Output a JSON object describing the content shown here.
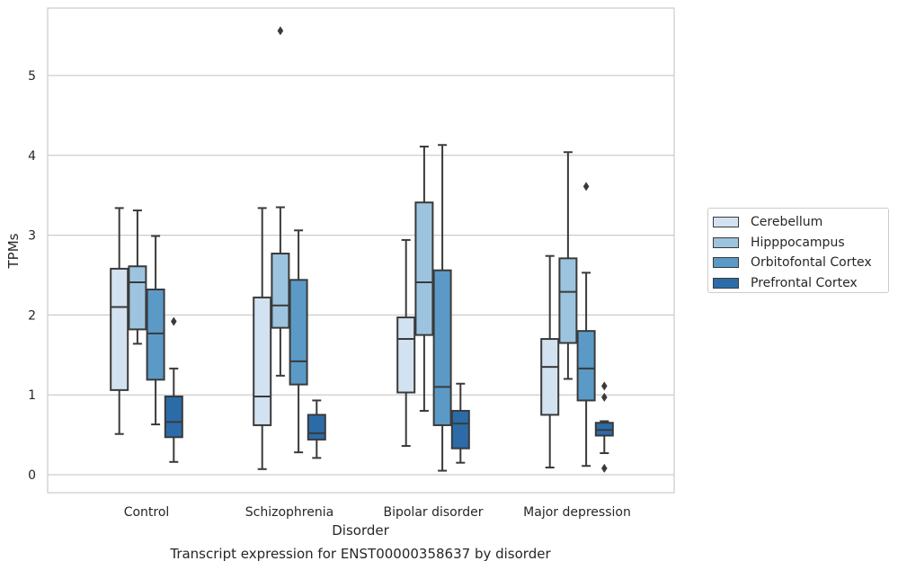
{
  "chart_data": {
    "type": "box",
    "title": "Transcript expression for ENST00000358637 by disorder",
    "xlabel": "Disorder",
    "ylabel": "TPMs",
    "ylim": [
      -0.22,
      5.85
    ],
    "yticks": [
      0,
      1,
      2,
      3,
      4,
      5
    ],
    "grid": "horizontal",
    "legend_position": "right",
    "categories": [
      "Control",
      "Schizophrenia",
      "Bipolar disorder",
      "Major depression"
    ],
    "series": [
      {
        "name": "Cerebellum",
        "color": "#d3e2f1",
        "boxes": [
          {
            "whislo": 0.51,
            "q1": 1.06,
            "med": 2.1,
            "q3": 2.58,
            "whishi": 3.34,
            "fliers": []
          },
          {
            "whislo": 0.07,
            "q1": 0.62,
            "med": 0.98,
            "q3": 2.22,
            "whishi": 3.34,
            "fliers": []
          },
          {
            "whislo": 0.36,
            "q1": 1.03,
            "med": 1.7,
            "q3": 1.97,
            "whishi": 2.94,
            "fliers": []
          },
          {
            "whislo": 0.09,
            "q1": 0.75,
            "med": 1.35,
            "q3": 1.7,
            "whishi": 2.74,
            "fliers": []
          }
        ]
      },
      {
        "name": "Hipppocampus",
        "color": "#9dc4de",
        "boxes": [
          {
            "whislo": 1.64,
            "q1": 1.82,
            "med": 2.41,
            "q3": 2.61,
            "whishi": 3.31,
            "fliers": []
          },
          {
            "whislo": 1.24,
            "q1": 1.84,
            "med": 2.12,
            "q3": 2.77,
            "whishi": 3.35,
            "fliers": [
              5.56
            ]
          },
          {
            "whislo": 0.8,
            "q1": 1.75,
            "med": 2.41,
            "q3": 3.41,
            "whishi": 4.11,
            "fliers": []
          },
          {
            "whislo": 1.2,
            "q1": 1.65,
            "med": 2.29,
            "q3": 2.71,
            "whishi": 4.04,
            "fliers": []
          }
        ]
      },
      {
        "name": "Orbitofontal Cortex",
        "color": "#5b9ac7",
        "boxes": [
          {
            "whislo": 0.63,
            "q1": 1.19,
            "med": 1.77,
            "q3": 2.32,
            "whishi": 2.99,
            "fliers": []
          },
          {
            "whislo": 0.28,
            "q1": 1.13,
            "med": 1.42,
            "q3": 2.44,
            "whishi": 3.06,
            "fliers": []
          },
          {
            "whislo": 0.05,
            "q1": 0.62,
            "med": 1.1,
            "q3": 2.56,
            "whishi": 4.13,
            "fliers": []
          },
          {
            "whislo": 0.11,
            "q1": 0.93,
            "med": 1.33,
            "q3": 1.8,
            "whishi": 2.53,
            "fliers": [
              3.61
            ]
          }
        ]
      },
      {
        "name": "Prefrontal Cortex",
        "color": "#2b6ca8",
        "boxes": [
          {
            "whislo": 0.16,
            "q1": 0.47,
            "med": 0.66,
            "q3": 0.98,
            "whishi": 1.33,
            "fliers": [
              1.92
            ]
          },
          {
            "whislo": 0.21,
            "q1": 0.44,
            "med": 0.52,
            "q3": 0.75,
            "whishi": 0.93,
            "fliers": []
          },
          {
            "whislo": 0.15,
            "q1": 0.33,
            "med": 0.64,
            "q3": 0.8,
            "whishi": 1.14,
            "fliers": []
          },
          {
            "whislo": 0.27,
            "q1": 0.49,
            "med": 0.56,
            "q3": 0.65,
            "whishi": 0.67,
            "fliers": [
              1.11,
              0.97,
              0.08
            ]
          }
        ]
      }
    ]
  }
}
